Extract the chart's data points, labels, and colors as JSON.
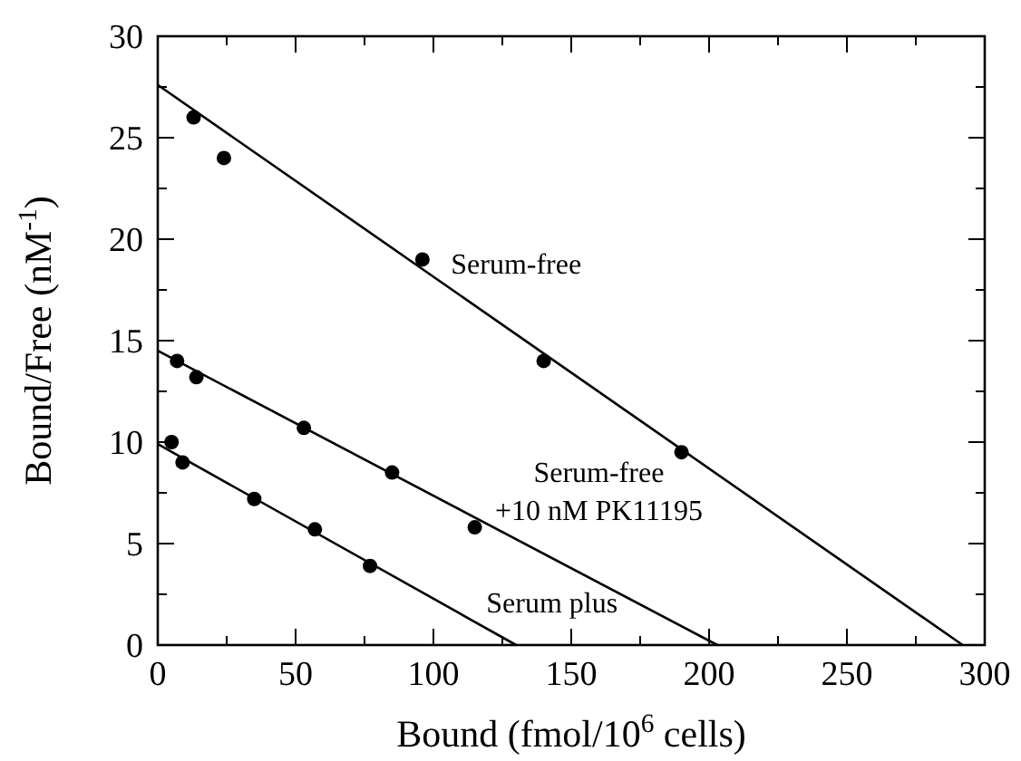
{
  "chart_data": {
    "type": "scatter",
    "xlabel": "Bound (fmol/10$^{6}$ cells)",
    "ylabel": "Bound/Free (nM$^{-1}$)",
    "xlim": [
      0,
      300
    ],
    "ylim": [
      0,
      30
    ],
    "xticks": [
      0,
      {
        "value": 25,
        "label": null
      },
      50,
      {
        "value": 75,
        "label": null
      },
      100,
      {
        "value": 125,
        "label": null
      },
      150,
      {
        "value": 175,
        "label": null
      },
      200,
      {
        "value": 225,
        "label": null
      },
      250,
      {
        "value": 275,
        "label": null
      },
      300
    ],
    "yticks": [
      0,
      {
        "value": 2.5,
        "label": null
      },
      5,
      {
        "value": 7.5,
        "label": null
      },
      10,
      {
        "value": 12.5,
        "label": null
      },
      15,
      {
        "value": 17.5,
        "label": null
      },
      20,
      {
        "value": 22.5,
        "label": null
      },
      25,
      {
        "value": 27.5,
        "label": null
      },
      30
    ],
    "grid": false,
    "series": [
      {
        "marker": "circle",
        "color": "#000000",
        "x": [
          13,
          24,
          96,
          140,
          190
        ],
        "values": [
          26,
          24,
          19,
          14,
          9.5
        ]
      },
      {
        "marker": "circle",
        "color": "#000000",
        "x": [
          7,
          14,
          53,
          85,
          115
        ],
        "values": [
          14,
          13.2,
          10.7,
          8.5,
          5.8
        ]
      },
      {
        "marker": "circle",
        "color": "#000000",
        "x": [
          5,
          9,
          35,
          57,
          77
        ],
        "values": [
          10,
          9,
          7.2,
          5.7,
          3.9
        ]
      },
      {
        "type": "line",
        "name": "Serum-free",
        "color": "#000000",
        "x": [
          0,
          292
        ],
        "values": [
          27.6,
          0
        ]
      },
      {
        "type": "line",
        "name": "Serum-free\n+10 nM PK11195",
        "color": "#000000",
        "x": [
          0,
          203
        ],
        "values": [
          14.5,
          0
        ]
      },
      {
        "type": "line",
        "name": "Serum plus",
        "color": "#000000",
        "x": [
          0,
          130
        ],
        "values": [
          9.9,
          0
        ]
      }
    ]
  }
}
